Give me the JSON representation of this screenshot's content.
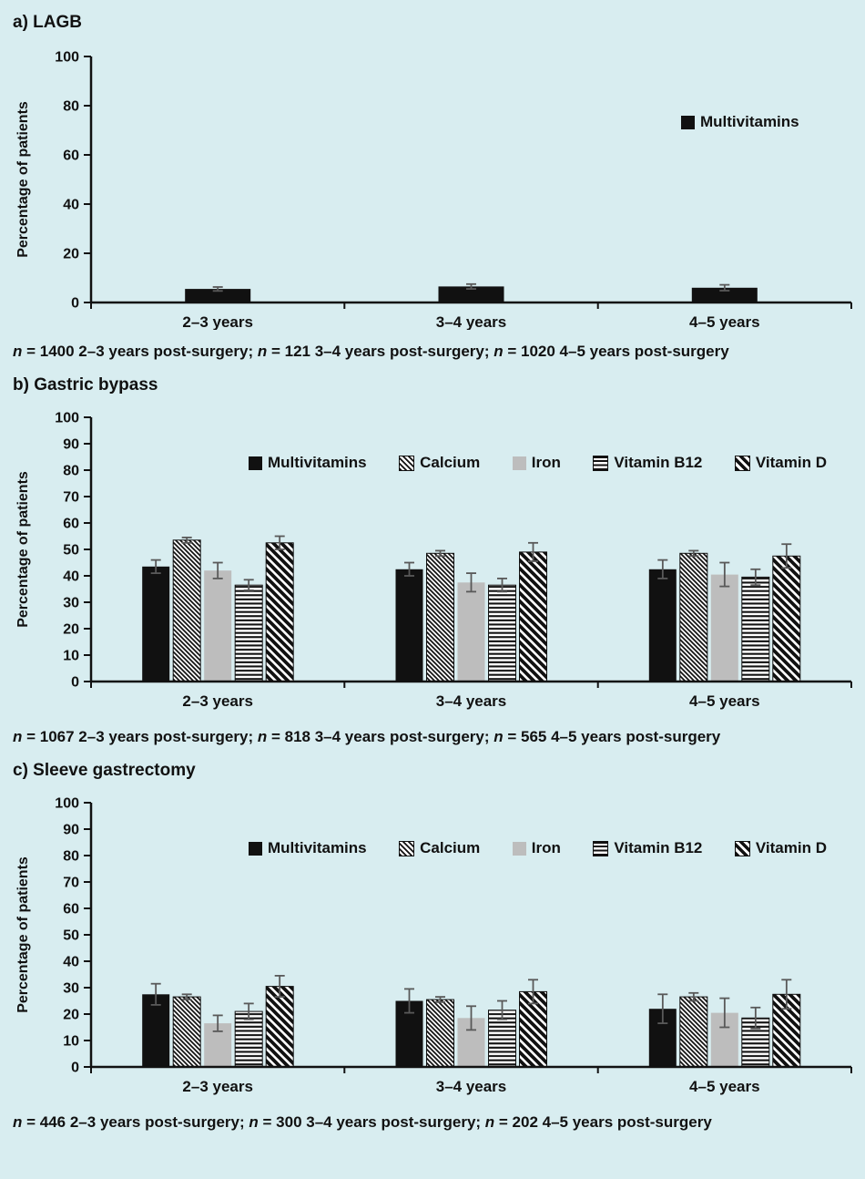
{
  "colors": {
    "background": "#d8edf0",
    "bar_black": "#111111",
    "bar_gray": "#bdbdbd",
    "error_bar": "#595959",
    "text": "#111111"
  },
  "chart_data": [
    {
      "type": "bar",
      "panel": "a",
      "title": "a) LAGB",
      "ylabel": "Percentage of patients",
      "xlabel": "",
      "ylim": [
        0,
        100
      ],
      "ytick_step": 20,
      "grid": false,
      "legend_position": "inside-right",
      "categories": [
        "2–3 years",
        "3–4 years",
        "4–5 years"
      ],
      "series": [
        {
          "name": "Multivitamins",
          "style": "solid-black",
          "values": [
            5.5,
            6.5,
            6
          ],
          "errors": [
            0.8,
            1,
            1.2
          ]
        }
      ],
      "caption": [
        {
          "text": "n",
          "italic": true
        },
        {
          "text": " = 1400 2–3 years post-surgery; "
        },
        {
          "text": "n",
          "italic": true
        },
        {
          "text": " = 121 3–4 years post-surgery; "
        },
        {
          "text": "n",
          "italic": true
        },
        {
          "text": " = 1020 4–5 years post-surgery"
        }
      ]
    },
    {
      "type": "bar",
      "panel": "b",
      "title": "b) Gastric bypass",
      "ylabel": "Percentage of patients",
      "xlabel": "",
      "ylim": [
        0,
        100
      ],
      "ytick_step": 10,
      "grid": false,
      "legend_position": "top-row",
      "categories": [
        "2–3 years",
        "3–4 years",
        "4–5 years"
      ],
      "series": [
        {
          "name": "Multivitamins",
          "style": "solid-black",
          "values": [
            43.5,
            42.5,
            42.5
          ],
          "errors": [
            2.5,
            2.5,
            3.5
          ]
        },
        {
          "name": "Calcium",
          "style": "diag-fine",
          "values": [
            53.5,
            48.5,
            48.5
          ],
          "errors": [
            1,
            1,
            1
          ]
        },
        {
          "name": "Iron",
          "style": "solid-gray",
          "values": [
            42,
            37.5,
            40.5
          ],
          "errors": [
            3,
            3.5,
            4.5
          ]
        },
        {
          "name": "Vitamin B12",
          "style": "hlines",
          "values": [
            36.5,
            36.5,
            39.5
          ],
          "errors": [
            2,
            2.5,
            3
          ]
        },
        {
          "name": "Vitamin D",
          "style": "diag-bold",
          "values": [
            52.5,
            49,
            47.5
          ],
          "errors": [
            2.5,
            3.5,
            4.5
          ]
        }
      ],
      "caption": [
        {
          "text": "n",
          "italic": true
        },
        {
          "text": " = 1067 2–3 years post-surgery; "
        },
        {
          "text": "n",
          "italic": true
        },
        {
          "text": " = 818 3–4 years post-surgery; "
        },
        {
          "text": "n",
          "italic": true
        },
        {
          "text": " = 565 4–5 years post-surgery"
        }
      ]
    },
    {
      "type": "bar",
      "panel": "c",
      "title": "c) Sleeve gastrectomy",
      "ylabel": "Percentage of patients",
      "xlabel": "",
      "ylim": [
        0,
        100
      ],
      "ytick_step": 10,
      "grid": false,
      "legend_position": "top-row",
      "categories": [
        "2–3 years",
        "3–4 years",
        "4–5 years"
      ],
      "series": [
        {
          "name": "Multivitamins",
          "style": "solid-black",
          "values": [
            27.5,
            25,
            22
          ],
          "errors": [
            4,
            4.5,
            5.5
          ]
        },
        {
          "name": "Calcium",
          "style": "diag-fine",
          "values": [
            26.5,
            25.5,
            26.5
          ],
          "errors": [
            1,
            1,
            1.5
          ]
        },
        {
          "name": "Iron",
          "style": "solid-gray",
          "values": [
            16.5,
            18.5,
            20.5
          ],
          "errors": [
            3,
            4.5,
            5.5
          ]
        },
        {
          "name": "Vitamin B12",
          "style": "hlines",
          "values": [
            21,
            21.5,
            18.5
          ],
          "errors": [
            3,
            3.5,
            4
          ]
        },
        {
          "name": "Vitamin D",
          "style": "diag-bold",
          "values": [
            30.5,
            28.5,
            27.5
          ],
          "errors": [
            4,
            4.5,
            5.5
          ]
        }
      ],
      "caption": [
        {
          "text": "n",
          "italic": true
        },
        {
          "text": " = 446 2–3 years post-surgery; "
        },
        {
          "text": "n",
          "italic": true
        },
        {
          "text": " = 300 3–4 years post-surgery; "
        },
        {
          "text": "n",
          "italic": true
        },
        {
          "text": " = 202 4–5 years post-surgery"
        }
      ]
    }
  ]
}
